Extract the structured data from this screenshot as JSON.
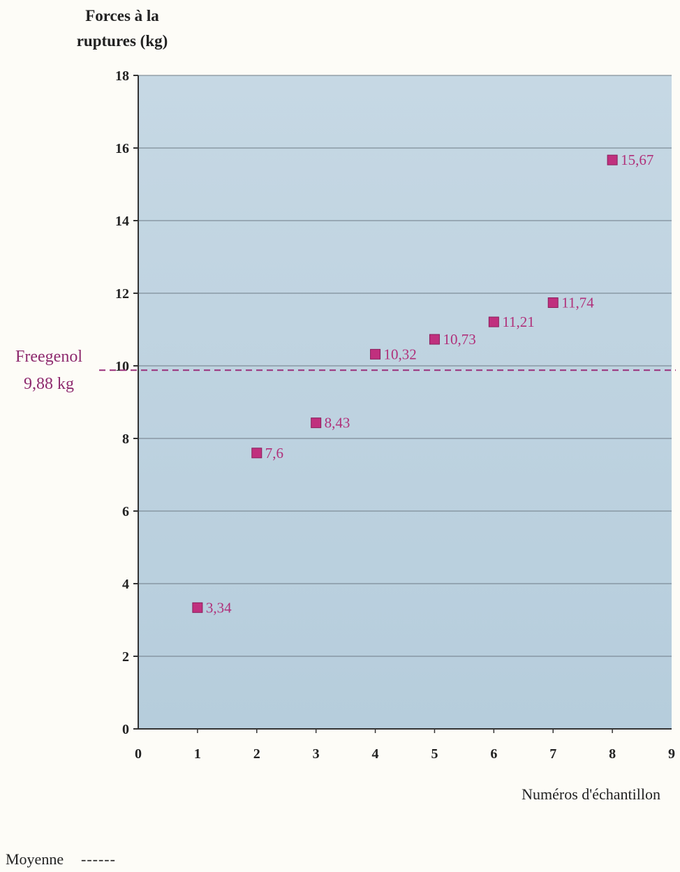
{
  "chart_data": {
    "type": "scatter",
    "ylabel_lines": [
      "Forces à la",
      "ruptures (kg)"
    ],
    "xlabel": "Numéros d'échantillon",
    "xlim": [
      0,
      9
    ],
    "ylim": [
      0,
      18
    ],
    "x_ticks": [
      0,
      1,
      2,
      3,
      4,
      5,
      6,
      7,
      8,
      9
    ],
    "y_ticks": [
      0,
      2,
      4,
      6,
      8,
      10,
      12,
      14,
      16,
      18
    ],
    "grid": "horizontal",
    "points": [
      {
        "x": 1,
        "y": 3.34,
        "label": "3,34"
      },
      {
        "x": 2,
        "y": 7.6,
        "label": "7,6"
      },
      {
        "x": 3,
        "y": 8.43,
        "label": "8,43"
      },
      {
        "x": 4,
        "y": 10.32,
        "label": "10,32"
      },
      {
        "x": 5,
        "y": 10.73,
        "label": "10,73"
      },
      {
        "x": 6,
        "y": 11.21,
        "label": "11,21"
      },
      {
        "x": 7,
        "y": 11.74,
        "label": "11,74"
      },
      {
        "x": 8,
        "y": 15.67,
        "label": "15,67"
      }
    ],
    "reference_line": {
      "y": 9.88,
      "name": "Freegenol",
      "value_label": "9,88 kg",
      "style": "dashed"
    },
    "legend": {
      "label": "Moyenne",
      "sample": "------",
      "placement": "bottom-left"
    },
    "colors": {
      "plot_background": "#bcd2e0",
      "marker": "#c0307e",
      "label": "#b0307a",
      "reference": "#9a2f7a",
      "grid": "#6e7b86"
    }
  }
}
